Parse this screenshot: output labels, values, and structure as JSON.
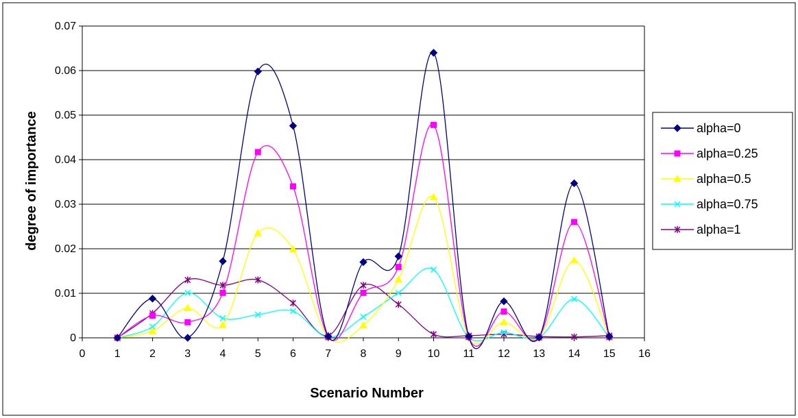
{
  "chart_data": {
    "type": "line",
    "title": "",
    "xlabel": "Scenario Number",
    "ylabel": "degree of importance",
    "xlim": [
      0,
      16
    ],
    "ylim": [
      0,
      0.07
    ],
    "xticks": [
      0,
      1,
      2,
      3,
      4,
      5,
      6,
      7,
      8,
      9,
      10,
      11,
      12,
      13,
      14,
      15,
      16
    ],
    "yticks": [
      0,
      0.01,
      0.02,
      0.03,
      0.04,
      0.05,
      0.06,
      0.07
    ],
    "ytick_labels": [
      "0",
      "0.01",
      "0.02",
      "0.03",
      "0.04",
      "0.05",
      "0.06",
      "0.07"
    ],
    "grid": "horizontal",
    "smooth": true,
    "legend_position": "right",
    "x": [
      1,
      2,
      3,
      4,
      5,
      6,
      7,
      8,
      9,
      10,
      11,
      12,
      13,
      14,
      15
    ],
    "series": [
      {
        "name": "alpha=0",
        "color": "#000080",
        "marker": "diamond",
        "values": [
          0,
          0.0088,
          0,
          0.0172,
          0.0598,
          0.0476,
          0.0003,
          0.017,
          0.0183,
          0.064,
          0.0003,
          0.0082,
          0.0001,
          0.0347,
          0.0003
        ]
      },
      {
        "name": "alpha=0.25",
        "color": "#ff00ff",
        "marker": "square",
        "values": [
          0,
          0.005,
          0.0035,
          0.0101,
          0.0417,
          0.034,
          0.0002,
          0.0101,
          0.0159,
          0.0478,
          0.0002,
          0.0059,
          0.0001,
          0.026,
          0.0002
        ]
      },
      {
        "name": "alpha=0.5",
        "color": "#ffff00",
        "marker": "triangle",
        "values": [
          0,
          0.0015,
          0.0067,
          0.0029,
          0.0235,
          0.0199,
          0.0001,
          0.0028,
          0.0131,
          0.0316,
          0.0001,
          0.0035,
          0.0001,
          0.0174,
          0.0001
        ]
      },
      {
        "name": "alpha=0.75",
        "color": "#00ffff",
        "marker": "x",
        "values": [
          0,
          0.0025,
          0.0101,
          0.0044,
          0.0052,
          0.006,
          0.0001,
          0.0047,
          0.0101,
          0.0153,
          0.0001,
          0.0012,
          0.0001,
          0.0087,
          0.0001
        ]
      },
      {
        "name": "alpha=1",
        "color": "#800080",
        "marker": "star",
        "values": [
          0,
          0.0055,
          0.013,
          0.0118,
          0.013,
          0.0078,
          0.0005,
          0.0118,
          0.0075,
          0.0008,
          0.0005,
          0.0008,
          0.0003,
          0.0002,
          0.0005
        ]
      }
    ]
  }
}
